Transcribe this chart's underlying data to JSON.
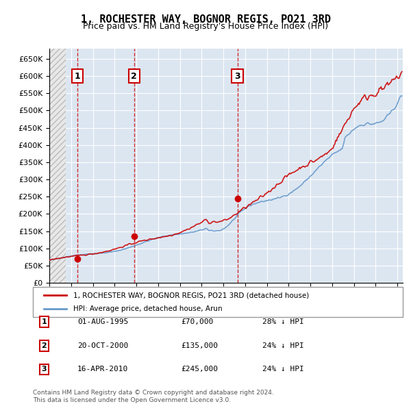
{
  "title": "1, ROCHESTER WAY, BOGNOR REGIS, PO21 3RD",
  "subtitle": "Price paid vs. HM Land Registry's House Price Index (HPI)",
  "ylabel": "",
  "ylim": [
    0,
    680000
  ],
  "yticks": [
    0,
    50000,
    100000,
    150000,
    200000,
    250000,
    300000,
    350000,
    400000,
    450000,
    500000,
    550000,
    600000,
    650000
  ],
  "xlim_start": 1993.0,
  "xlim_end": 2025.5,
  "background_color": "#ffffff",
  "plot_bg_color": "#dce6f1",
  "hatch_color": "#c0c0c0",
  "grid_color": "#ffffff",
  "sale_dates": [
    1995.583,
    2000.8,
    2010.29
  ],
  "sale_prices": [
    70000,
    135000,
    245000
  ],
  "sale_labels": [
    "1",
    "2",
    "3"
  ],
  "legend_label_red": "1, ROCHESTER WAY, BOGNOR REGIS, PO21 3RD (detached house)",
  "legend_label_blue": "HPI: Average price, detached house, Arun",
  "table_data": [
    [
      "1",
      "01-AUG-1995",
      "£70,000",
      "28% ↓ HPI"
    ],
    [
      "2",
      "20-OCT-2000",
      "£135,000",
      "24% ↓ HPI"
    ],
    [
      "3",
      "16-APR-2010",
      "£245,000",
      "24% ↓ HPI"
    ]
  ],
  "footer": "Contains HM Land Registry data © Crown copyright and database right 2024.\nThis data is licensed under the Open Government Licence v3.0.",
  "red_color": "#cc0000",
  "blue_color": "#6699cc"
}
